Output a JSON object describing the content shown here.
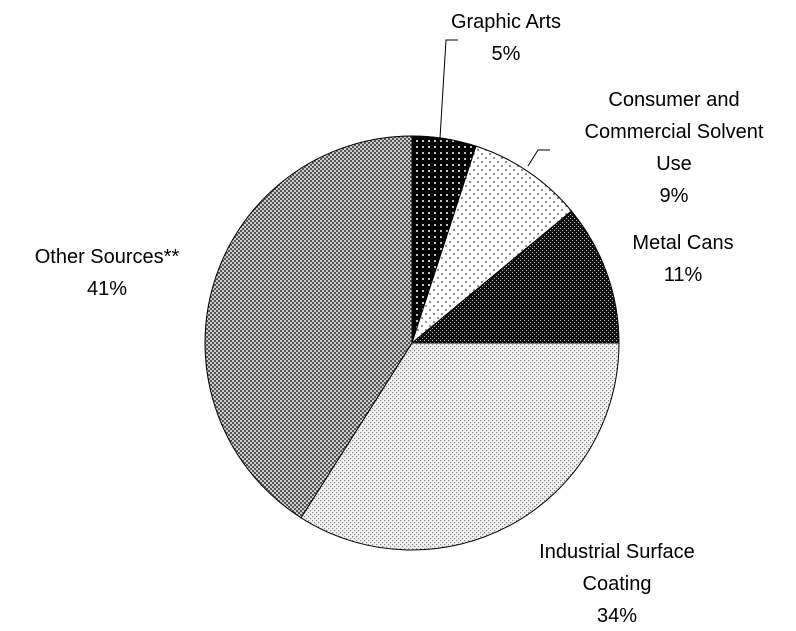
{
  "chart_data": {
    "type": "pie",
    "categories": [
      "Graphic Arts",
      "Consumer and Commercial Solvent Use",
      "Metal Cans",
      "Industrial Surface Coating",
      "Other Sources**"
    ],
    "values": [
      5,
      9,
      11,
      34,
      41
    ],
    "value_labels": [
      "5%",
      "9%",
      "11%",
      "34%",
      "41%"
    ]
  }
}
